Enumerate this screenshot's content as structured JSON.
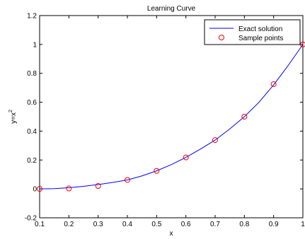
{
  "chart_data": {
    "type": "line",
    "title": "Learning Curve",
    "xlabel": "x",
    "ylabel": {
      "base": "y=x",
      "sup": "2"
    },
    "xlim": [
      0.1,
      1
    ],
    "ylim": [
      -0.2,
      1.2
    ],
    "xticks": [
      0.1,
      0.2,
      0.3,
      0.4,
      0.5,
      0.6,
      0.7,
      0.8,
      0.9,
      1
    ],
    "xtick_labels": [
      "0.1",
      "0.2",
      "0.3",
      "0.4",
      "0.5",
      "0.6",
      "0.7",
      "0.8",
      "0.9",
      "1"
    ],
    "yticks": [
      -0.2,
      0,
      0.2,
      0.4,
      0.6,
      0.8,
      1,
      1.2
    ],
    "ytick_labels": [
      "-0.2",
      "0",
      "0.2",
      "0.4",
      "0.6",
      "0.8",
      "1",
      "1.2"
    ],
    "grid": false,
    "legend_position": "top-right",
    "series": [
      {
        "name": "Exact solution",
        "kind": "line",
        "color": "#0000ff",
        "x": [
          0.1,
          0.15,
          0.2,
          0.25,
          0.3,
          0.35,
          0.4,
          0.45,
          0.5,
          0.55,
          0.6,
          0.65,
          0.7,
          0.75,
          0.8,
          0.85,
          0.9,
          0.95,
          1
        ],
        "y": [
          0,
          0.002,
          0.008,
          0.018,
          0.03,
          0.045,
          0.062,
          0.09,
          0.125,
          0.168,
          0.218,
          0.276,
          0.338,
          0.415,
          0.5,
          0.6,
          0.72,
          0.855,
          1
        ]
      },
      {
        "name": "Sample points",
        "kind": "scatter",
        "color": "#ff0000",
        "marker": "circle-open",
        "x": [
          0.1,
          0.2,
          0.3,
          0.4,
          0.5,
          0.6,
          0.7,
          0.8,
          0.9,
          1
        ],
        "y": [
          0,
          0.003,
          0.02,
          0.062,
          0.125,
          0.218,
          0.338,
          0.5,
          0.725,
          1
        ]
      }
    ]
  }
}
